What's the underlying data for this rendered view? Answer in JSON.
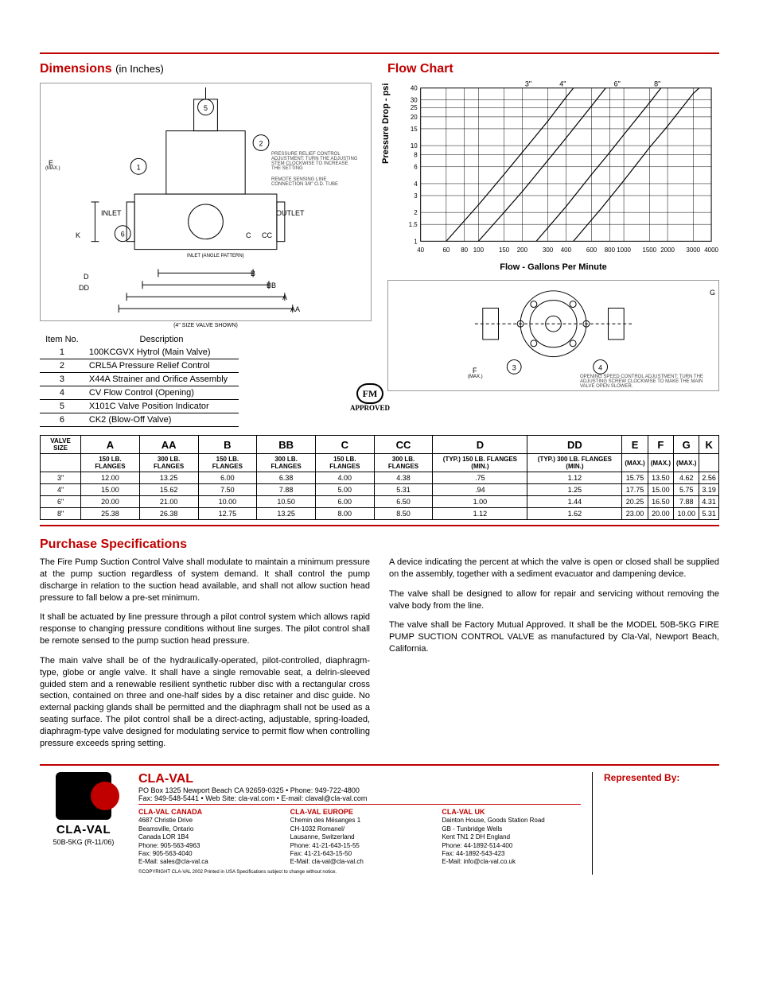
{
  "top": {
    "dimensions_title": "Dimensions ",
    "dimensions_sub": "(in Inches)",
    "flow_title": "Flow Chart",
    "diagram_caption": "(4\" SIZE VALVE SHOWN)",
    "inlet": "INLET",
    "outlet": "OUTLET",
    "angle_note": "INLET (ANGLE PATTERN)",
    "relief_note": "PRESSURE RELIEF CONTROL ADJUSTMENT: TURN THE ADJUSTING STEM CLOCKWISE TO INCREASE THE SETTING",
    "remote_note": "REMOTE SENSING LINE CONNECTION 3/8\" O.D. TUBE",
    "opening_note": "OPENING SPEED CONTROL ADJUSTMENT: TURN THE ADJUSTING SCREW CLOCKWISE TO MAKE THE MAIN VALVE OPEN SLOWER.",
    "dim_labels": [
      "E",
      "(MAX.)",
      "K",
      "D",
      "DD",
      "B",
      "BB",
      "A",
      "AA",
      "C",
      "CC",
      "F",
      "(MAX.)",
      "G"
    ],
    "fm_line1": "FM",
    "fm_line2": "APPROVED"
  },
  "flow_chart": {
    "type": "line",
    "x_label": "Flow - Gallons Per Minute",
    "y_label": "Pressure Drop - psi",
    "x_ticks": [
      40,
      60,
      80,
      100,
      150,
      200,
      300,
      400,
      600,
      800,
      1000,
      1500,
      2000,
      3000,
      4000
    ],
    "y_ticks": [
      1,
      1.5,
      2,
      3,
      4,
      6,
      8,
      10,
      15,
      20,
      25,
      30,
      40
    ],
    "series_labels": [
      "3\"",
      "4\"",
      "6\"",
      "8\""
    ],
    "background_color": "#ffffff",
    "grid_color": "#000000",
    "line_color": "#000000",
    "line_width": 1,
    "series": [
      {
        "label": "3\"",
        "points": [
          [
            60,
            1
          ],
          [
            100,
            2.4
          ],
          [
            150,
            5
          ],
          [
            200,
            8.5
          ],
          [
            300,
            18
          ],
          [
            400,
            32
          ],
          [
            450,
            40
          ]
        ]
      },
      {
        "label": "4\"",
        "points": [
          [
            100,
            1
          ],
          [
            150,
            2
          ],
          [
            200,
            3.3
          ],
          [
            300,
            7
          ],
          [
            400,
            12
          ],
          [
            600,
            26
          ],
          [
            750,
            40
          ]
        ]
      },
      {
        "label": "6\"",
        "points": [
          [
            250,
            1
          ],
          [
            400,
            2.3
          ],
          [
            600,
            5
          ],
          [
            800,
            8.5
          ],
          [
            1000,
            13
          ],
          [
            1500,
            28
          ],
          [
            1800,
            40
          ]
        ]
      },
      {
        "label": "8\"",
        "points": [
          [
            450,
            1
          ],
          [
            700,
            2.2
          ],
          [
            1000,
            4.3
          ],
          [
            1500,
            9.5
          ],
          [
            2000,
            16
          ],
          [
            3000,
            35
          ],
          [
            3300,
            40
          ]
        ]
      }
    ]
  },
  "items": {
    "header_no": "Item No.",
    "header_desc": "Description",
    "rows": [
      {
        "no": "1",
        "desc": "100KCGVX Hytrol (Main Valve)"
      },
      {
        "no": "2",
        "desc": "CRL5A Pressure Relief Control"
      },
      {
        "no": "3",
        "desc": "X44A Strainer and Orifice Assembly"
      },
      {
        "no": "4",
        "desc": "CV Flow Control (Opening)"
      },
      {
        "no": "5",
        "desc": "X101C Valve Position Indicator"
      },
      {
        "no": "6",
        "desc": "CK2 (Blow-Off Valve)"
      }
    ]
  },
  "dims": {
    "headers": [
      "VALVE SIZE",
      "A",
      "AA",
      "B",
      "BB",
      "C",
      "CC",
      "D",
      "DD",
      "E",
      "F",
      "G",
      "K"
    ],
    "subheaders": [
      "",
      "150 LB. FLANGES",
      "300 LB. FLANGES",
      "150 LB. FLANGES",
      "300 LB. FLANGES",
      "150 LB. FLANGES",
      "300 LB. FLANGES",
      "(TYP.) 150 LB. FLANGES (MIN.)",
      "(TYP.) 300 LB. FLANGES (MIN.)",
      "(MAX.)",
      "(MAX.)",
      "(MAX.)",
      ""
    ],
    "rows": [
      [
        "3\"",
        "12.00",
        "13.25",
        "6.00",
        "6.38",
        "4.00",
        "4.38",
        ".75",
        "1.12",
        "15.75",
        "13.50",
        "4.62",
        "2.56"
      ],
      [
        "4\"",
        "15.00",
        "15.62",
        "7.50",
        "7.88",
        "5.00",
        "5.31",
        ".94",
        "1.25",
        "17.75",
        "15.00",
        "5.75",
        "3.19"
      ],
      [
        "6\"",
        "20.00",
        "21.00",
        "10.00",
        "10.50",
        "6.00",
        "6.50",
        "1.00",
        "1.44",
        "20.25",
        "16.50",
        "7.88",
        "4.31"
      ],
      [
        "8\"",
        "25.38",
        "26.38",
        "12.75",
        "13.25",
        "8.00",
        "8.50",
        "1.12",
        "1.62",
        "23.00",
        "20.00",
        "10.00",
        "5.31"
      ]
    ]
  },
  "purchase": {
    "title": "Purchase Specifications",
    "paragraphs": [
      "The Fire Pump Suction Control Valve shall modulate to maintain a minimum pressure at the pump suction regardless of system demand.  It shall control the pump discharge in relation to the suction head available, and shall not allow suction head pressure to fall below a pre-set minimum.",
      "It shall be actuated by line pressure through a pilot control system which allows rapid response to changing pressure conditions without line surges.  The pilot control shall be remote sensed to the pump suction head pressure.",
      "The main valve shall be of the hydraulically-operated, pilot-controlled, diaphragm-type, globe or angle valve.  It shall have a single removable seat, a delrin-sleeved guided stem and a renewable resilient synthetic rubber disc with a rectangular cross section, contained on three and one-half sides by a disc retainer and disc guide.  No external packing glands shall be permitted and the diaphragm shall not be used as a seating surface.  The pilot control shall be a direct-acting, adjustable, spring-loaded, diaphragm-type valve designed for modulating service to permit flow when controlling pressure exceeds spring setting.",
      "A device indicating the percent at which the valve is open or closed shall be supplied on the assembly, together with a sediment evacuator and dampening device.",
      "The valve shall be designed to allow for repair and servicing without removing the valve body from the line.",
      "The valve shall be Factory Mutual Approved.  It shall be the MODEL 50B-5KG FIRE PUMP SUCTION CONTROL VALVE as manufactured by Cla-Val, Newport Beach, California."
    ]
  },
  "footer": {
    "company": "CLA-VAL",
    "logo_text": "CLA-VAL",
    "rev": "50B-5KG (R-11/06)",
    "hq_line1": "PO Box 1325 Newport Beach CA 92659-0325 • Phone: 949-722-4800",
    "hq_line2": "Fax: 949-548-5441 • Web Site: cla-val.com • E-mail: claval@cla-val.com",
    "rep_title": "Represented By:",
    "copyright": "©COPYRIGHT CLA-VAL 2002 Printed in USA Specifications subject to change without notice.",
    "offices": [
      {
        "name": "CLA-VAL CANADA",
        "l1": "4687 Christie Drive",
        "l2": "Beamsville, Ontario",
        "l3": "Canada LOR 1B4",
        "l4": "Phone:    905-563-4963",
        "l5": "Fax:        905-563-4040",
        "l6": "E-Mail: sales@cla-val.ca"
      },
      {
        "name": "CLA-VAL EUROPE",
        "l1": "Chemin des Mésanges 1",
        "l2": "CH-1032 Romanel/",
        "l3": "Lausanne, Switzerland",
        "l4": "Phone:  41-21-643-15-55",
        "l5": "Fax:      41-21-643-15-50",
        "l6": "E-Mail: cla-val@cla-val.ch"
      },
      {
        "name": "CLA-VAL UK",
        "l1": "Dainton House, Goods Station Road",
        "l2": "GB - Tunbridge Wells",
        "l3": "Kent TN1 2 DH England",
        "l4": "Phone:  44-1892-514-400",
        "l5": "Fax:      44-1892-543-423",
        "l6": "E-Mail: info@cla-val.co.uk"
      }
    ]
  }
}
